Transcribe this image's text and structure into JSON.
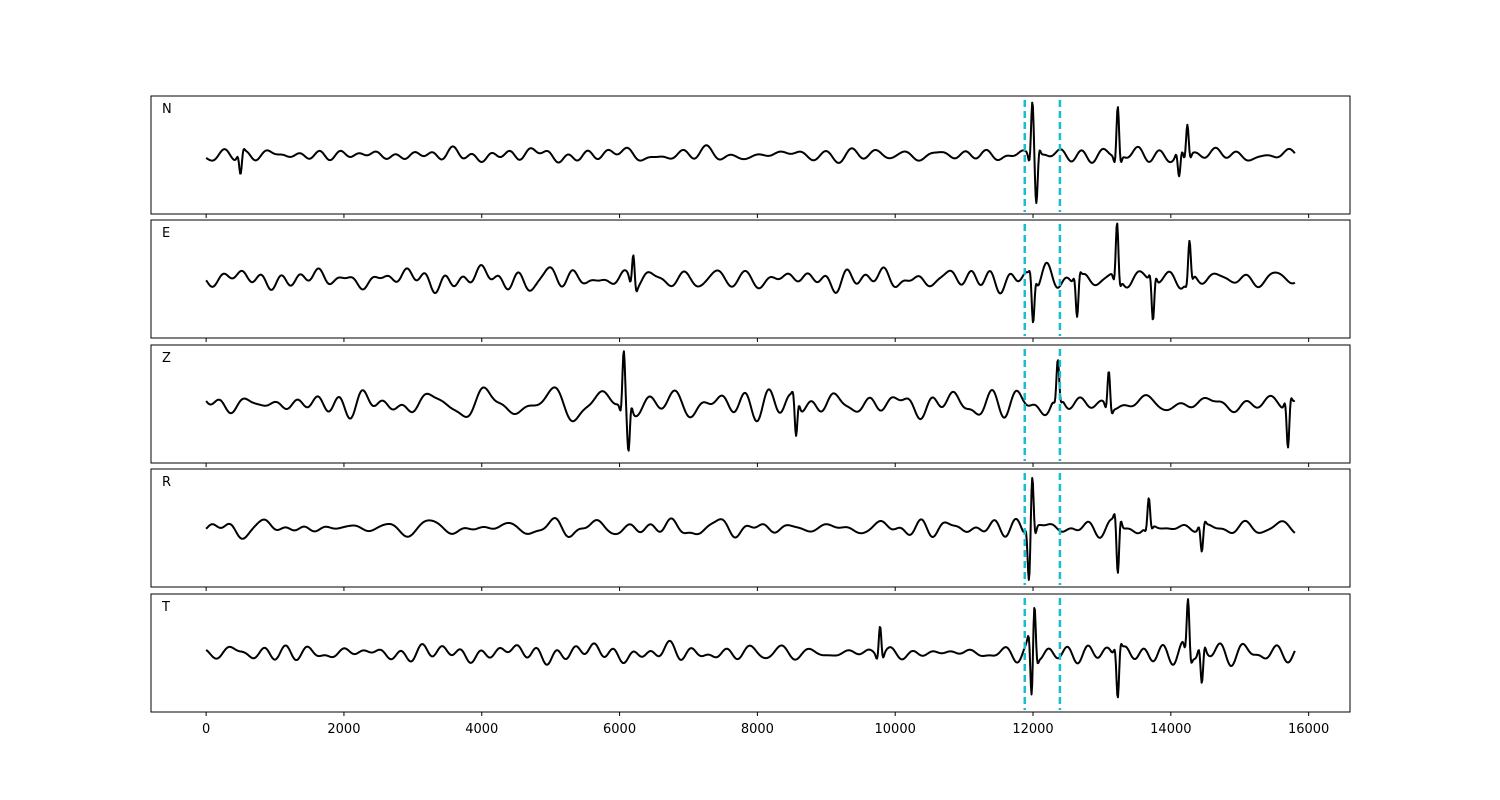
{
  "chart_data": {
    "type": "line",
    "description_note": "",
    "x_axis": {
      "xlim": [
        -800,
        16600
      ],
      "ticks": [
        0,
        2000,
        4000,
        6000,
        8000,
        10000,
        12000,
        14000,
        16000
      ],
      "tick_labels": [
        "0",
        "2000",
        "4000",
        "6000",
        "8000",
        "10000",
        "12000",
        "14000",
        "16000"
      ],
      "xlabel": ""
    },
    "sample_range": [
      0,
      15800
    ],
    "markers": {
      "color": "#17becf",
      "style": "dashed",
      "x": [
        11880,
        12390
      ]
    },
    "trace_color": "#000000",
    "grid": false,
    "panels": [
      {
        "label": "N",
        "ylim": [
          -1,
          1
        ],
        "noise_amplitude": 0.18,
        "bursts": [
          {
            "x": 11990,
            "amp": 0.95,
            "sign": 1
          },
          {
            "x": 12050,
            "amp": 0.75,
            "sign": -1
          },
          {
            "x": 13230,
            "amp": 0.9,
            "sign": 1
          },
          {
            "x": 14240,
            "amp": 0.55,
            "sign": 1
          },
          {
            "x": 14120,
            "amp": 0.4,
            "sign": -1
          },
          {
            "x": 500,
            "amp": 0.35,
            "sign": -1
          }
        ]
      },
      {
        "label": "E",
        "ylim": [
          -1,
          1
        ],
        "noise_amplitude": 0.3,
        "bursts": [
          {
            "x": 12000,
            "amp": 0.7,
            "sign": -1
          },
          {
            "x": 13220,
            "amp": 0.95,
            "sign": 1
          },
          {
            "x": 13740,
            "amp": 0.7,
            "sign": -1
          },
          {
            "x": 14270,
            "amp": 0.65,
            "sign": 1
          },
          {
            "x": 12640,
            "amp": 0.65,
            "sign": -1
          },
          {
            "x": 6200,
            "amp": 0.55,
            "sign": 1
          }
        ]
      },
      {
        "label": "Z",
        "ylim": [
          -1,
          1
        ],
        "noise_amplitude": 0.32,
        "bursts": [
          {
            "x": 6060,
            "amp": 0.95,
            "sign": 1
          },
          {
            "x": 6130,
            "amp": 0.75,
            "sign": -1
          },
          {
            "x": 12360,
            "amp": 0.65,
            "sign": 1
          },
          {
            "x": 13100,
            "amp": 0.65,
            "sign": 1
          },
          {
            "x": 15700,
            "amp": 0.75,
            "sign": -1
          },
          {
            "x": 8560,
            "amp": 0.6,
            "sign": -1
          }
        ]
      },
      {
        "label": "R",
        "ylim": [
          -1,
          1
        ],
        "noise_amplitude": 0.2,
        "bursts": [
          {
            "x": 11990,
            "amp": 0.9,
            "sign": 1
          },
          {
            "x": 11940,
            "amp": 0.7,
            "sign": -1
          },
          {
            "x": 13230,
            "amp": 0.9,
            "sign": -1
          },
          {
            "x": 14450,
            "amp": 0.45,
            "sign": -1
          },
          {
            "x": 13680,
            "amp": 0.5,
            "sign": 1
          }
        ]
      },
      {
        "label": "T",
        "ylim": [
          -1,
          1
        ],
        "noise_amplitude": 0.24,
        "bursts": [
          {
            "x": 11980,
            "amp": 0.85,
            "sign": -1
          },
          {
            "x": 12020,
            "amp": 0.75,
            "sign": 1
          },
          {
            "x": 13230,
            "amp": 0.8,
            "sign": -1
          },
          {
            "x": 14250,
            "amp": 0.9,
            "sign": 1
          },
          {
            "x": 14450,
            "amp": 0.6,
            "sign": -1
          },
          {
            "x": 9780,
            "amp": 0.55,
            "sign": 1
          }
        ]
      }
    ]
  }
}
